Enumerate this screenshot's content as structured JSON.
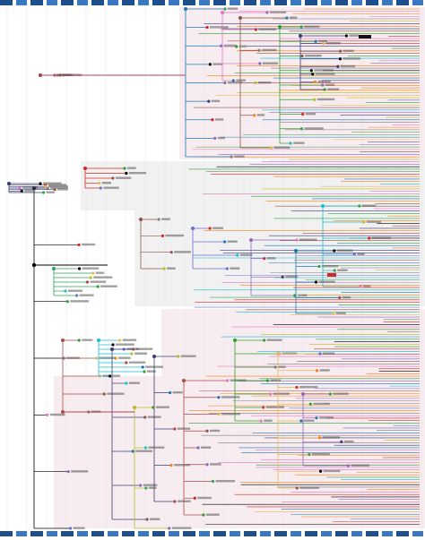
{
  "diagram": {
    "kind": "phylogenetic-tree",
    "root_label": "",
    "palette": [
      "#1f77b4",
      "#e377c2",
      "#2ca02c",
      "#9467bd",
      "#bcbd22",
      "#17becf",
      "#d62728",
      "#ff7f0e",
      "#8c564b",
      "#7f7f7f",
      "#393b79",
      "#e7ba52",
      "#000000",
      "#6b6ecf",
      "#31a354",
      "#ad494a"
    ],
    "band_colors": [
      "#1f4e8c",
      "#3a78c2"
    ],
    "shading": [
      "#f7ecef",
      "#f1f1f1"
    ],
    "tip_count_estimate": 210
  }
}
